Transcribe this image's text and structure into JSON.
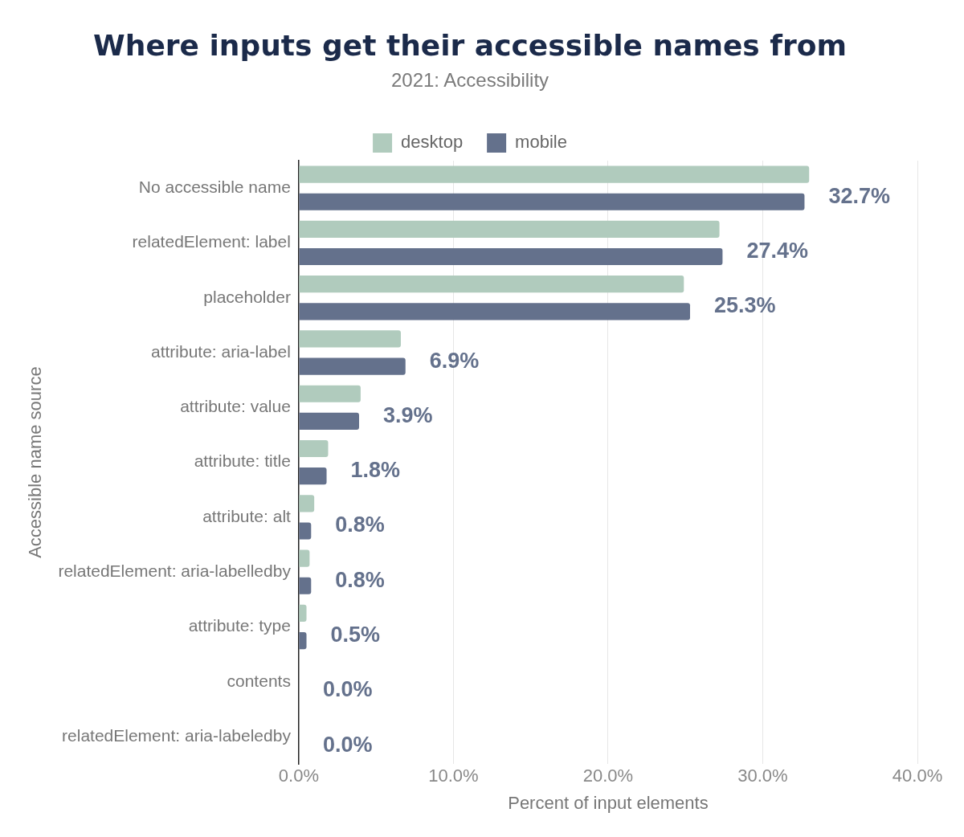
{
  "chart_data": {
    "type": "bar",
    "orientation": "horizontal",
    "title": "Where inputs get their accessible names from",
    "subtitle": "2021: Accessibility",
    "xlabel": "Percent of input elements",
    "ylabel": "Accessible name source",
    "categories": [
      "No accessible name",
      "relatedElement: label",
      "placeholder",
      "attribute: aria-label",
      "attribute: value",
      "attribute: title",
      "attribute: alt",
      "relatedElement: aria-labelledby",
      "attribute: type",
      "contents",
      "relatedElement: aria-labeledby"
    ],
    "series": [
      {
        "name": "desktop",
        "color": "#b0cbbd",
        "values": [
          33.0,
          27.2,
          24.9,
          6.6,
          4.0,
          1.9,
          1.0,
          0.7,
          0.5,
          0.0,
          0.0
        ]
      },
      {
        "name": "mobile",
        "color": "#64718c",
        "values": [
          32.7,
          27.4,
          25.3,
          6.9,
          3.9,
          1.8,
          0.8,
          0.8,
          0.5,
          0.0,
          0.0
        ],
        "value_labels": [
          "32.7%",
          "27.4%",
          "25.3%",
          "6.9%",
          "3.9%",
          "1.8%",
          "0.8%",
          "0.8%",
          "0.5%",
          "0.0%",
          "0.0%"
        ]
      }
    ],
    "xlim": [
      0,
      40
    ],
    "xticks": [
      {
        "value": 0,
        "label": "0.0%"
      },
      {
        "value": 10,
        "label": "10.0%"
      },
      {
        "value": 20,
        "label": "20.0%"
      },
      {
        "value": 30,
        "label": "30.0%"
      },
      {
        "value": 40,
        "label": "40.0%"
      }
    ],
    "grid": "x",
    "legend": "top"
  }
}
